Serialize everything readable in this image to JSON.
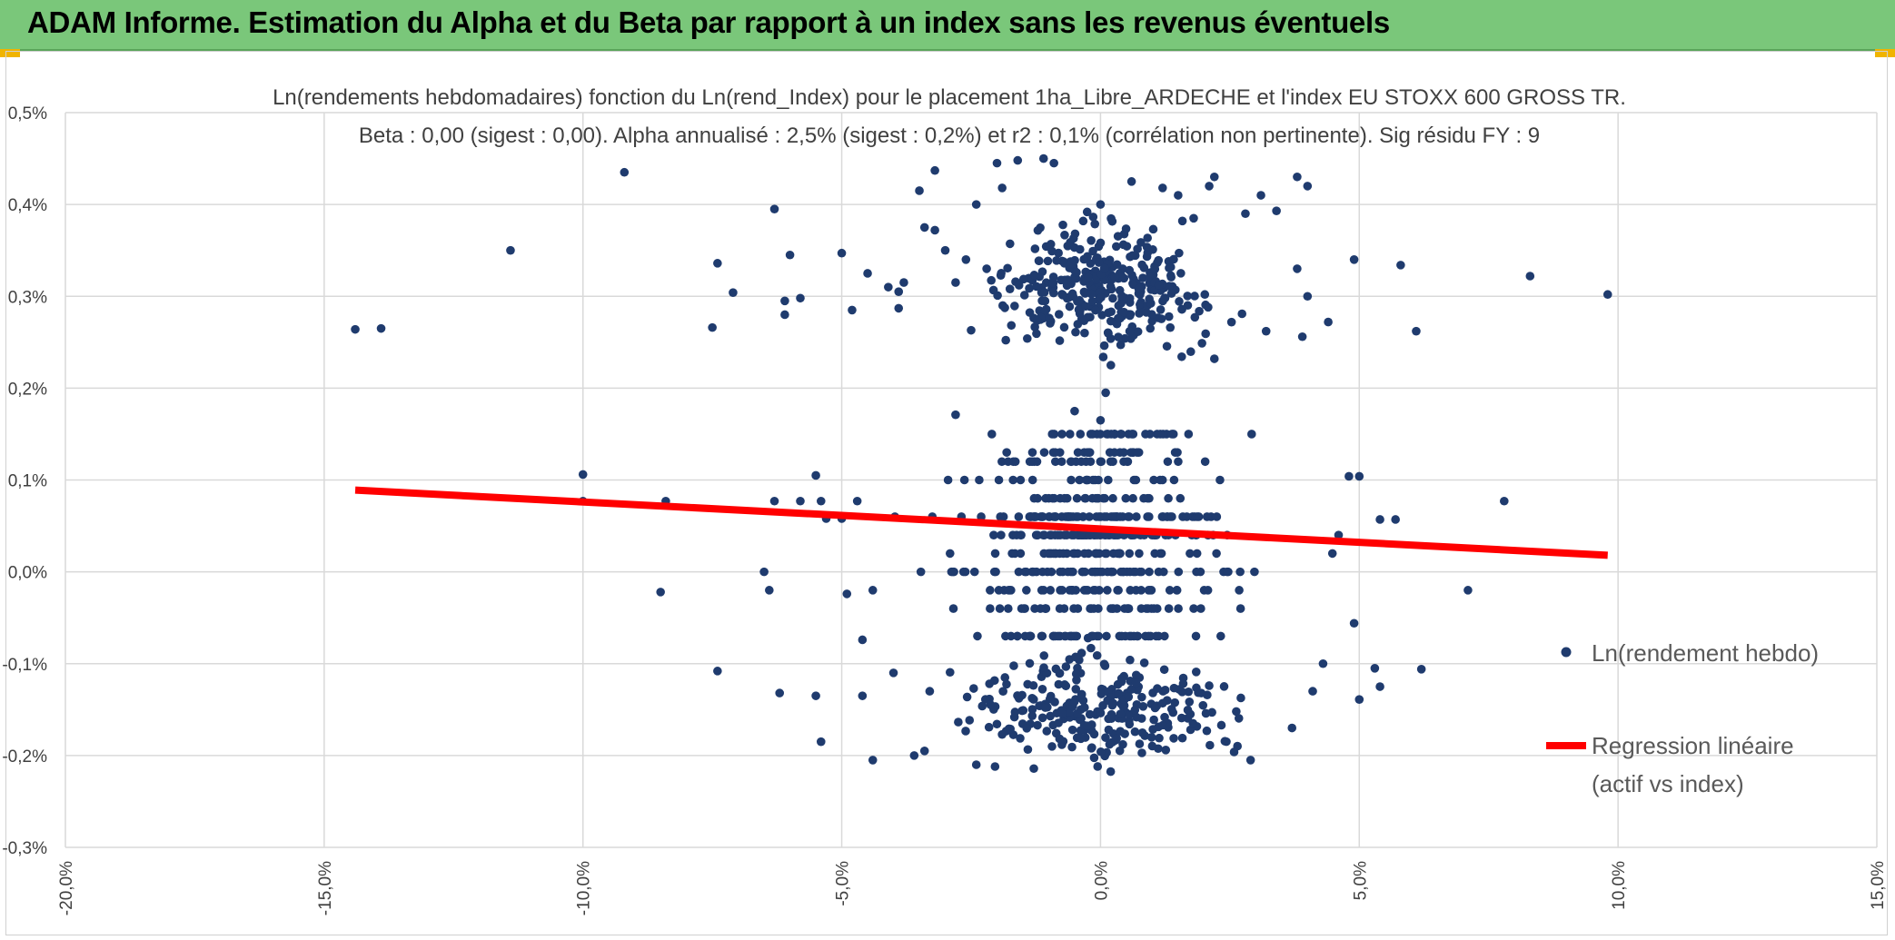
{
  "page": {
    "banner_title": "ADAM Informe. Estimation du Alpha et du Beta par rapport à un index sans les revenus éventuels"
  },
  "colors": {
    "banner": "#7ac77a",
    "points": "#1f3b6e",
    "regression": "#ff0000",
    "grid": "#d9d9d9",
    "corner_accent": "#f0b400"
  },
  "chart_data": {
    "type": "scatter",
    "title_line1": "Ln(rendements hebdomadaires) fonction du Ln(rend_Index) pour le placement 1ha_Libre_ARDECHE et l'index EU STOXX 600 GROSS TR.",
    "title_line2": "Beta : 0,00 (sigest : 0,00). Alpha annualisé : 2,5% (sigest : 0,2%) et r2 : 0,1% (corrélation non pertinente). Sig résidu FY : 9",
    "xlabel": "",
    "ylabel": "",
    "xlim": [
      -0.2,
      0.15
    ],
    "ylim": [
      -0.003,
      0.005
    ],
    "x_ticks": [
      {
        "v": -0.2,
        "label": "-20,0%"
      },
      {
        "v": -0.15,
        "label": "-15,0%"
      },
      {
        "v": -0.1,
        "label": "-10,0%"
      },
      {
        "v": -0.05,
        "label": "-5,0%"
      },
      {
        "v": 0.0,
        "label": "0,0%"
      },
      {
        "v": 0.05,
        "label": "5,0%"
      },
      {
        "v": 0.1,
        "label": "10,0%"
      },
      {
        "v": 0.15,
        "label": "15,0%"
      }
    ],
    "y_ticks": [
      {
        "v": 0.005,
        "label": "0,5%"
      },
      {
        "v": 0.004,
        "label": "0,4%"
      },
      {
        "v": 0.003,
        "label": "0,3%"
      },
      {
        "v": 0.002,
        "label": "0,2%"
      },
      {
        "v": 0.001,
        "label": "0,1%"
      },
      {
        "v": 0.0,
        "label": "0,0%"
      },
      {
        "v": -0.001,
        "label": "-0,1%"
      },
      {
        "v": -0.002,
        "label": "-0,2%"
      },
      {
        "v": -0.003,
        "label": "-0,3%"
      }
    ],
    "grid": true,
    "legend_position": "right",
    "legend": [
      {
        "name": "Ln(rendement hebdo)",
        "kind": "marker"
      },
      {
        "name": "Regression linéaire\n(actif vs index)",
        "line1": "Regression linéaire",
        "line2": "(actif vs index)",
        "kind": "line"
      }
    ],
    "regression": {
      "x": [
        -0.144,
        0.098
      ],
      "y": [
        0.00089,
        0.00018
      ]
    },
    "series": [
      {
        "name": "Ln(rendement hebdo)",
        "points": [
          [
            -0.144,
            0.00264
          ],
          [
            -0.139,
            0.00265
          ],
          [
            -0.114,
            0.0035
          ],
          [
            -0.092,
            0.00435
          ],
          [
            -0.063,
            0.00395
          ],
          [
            -0.075,
            0.00266
          ],
          [
            -0.074,
            0.00336
          ],
          [
            -0.071,
            0.00304
          ],
          [
            -0.06,
            0.00345
          ],
          [
            -0.061,
            0.0028
          ],
          [
            -0.061,
            0.00295
          ],
          [
            -0.058,
            0.00298
          ],
          [
            -0.05,
            0.00347
          ],
          [
            -0.048,
            0.00285
          ],
          [
            -0.045,
            0.00325
          ],
          [
            -0.041,
            0.0031
          ],
          [
            -0.039,
            0.00287
          ],
          [
            -0.039,
            0.00305
          ],
          [
            -0.038,
            0.00315
          ],
          [
            -0.035,
            0.00415
          ],
          [
            -0.034,
            0.00375
          ],
          [
            -0.032,
            0.00372
          ],
          [
            -0.032,
            0.00437
          ],
          [
            -0.03,
            0.0035
          ],
          [
            -0.028,
            0.00315
          ],
          [
            -0.026,
            0.0034
          ],
          [
            -0.025,
            0.00263
          ],
          [
            -0.024,
            0.004
          ],
          [
            -0.022,
            0.0033
          ],
          [
            -0.02,
            0.00445
          ],
          [
            -0.019,
            0.00418
          ],
          [
            -0.016,
            0.00448
          ],
          [
            -0.011,
            0.0045
          ],
          [
            -0.009,
            0.00445
          ],
          [
            0.0,
            0.004
          ],
          [
            0.002,
            0.00225
          ],
          [
            0.006,
            0.00425
          ],
          [
            0.012,
            0.00418
          ],
          [
            0.015,
            0.0041
          ],
          [
            0.018,
            0.00385
          ],
          [
            0.021,
            0.0042
          ],
          [
            0.022,
            0.0043
          ],
          [
            0.022,
            0.00232
          ],
          [
            0.028,
            0.0039
          ],
          [
            0.031,
            0.0041
          ],
          [
            0.032,
            0.00262
          ],
          [
            0.034,
            0.00393
          ],
          [
            0.038,
            0.0043
          ],
          [
            0.04,
            0.0042
          ],
          [
            0.038,
            0.0033
          ],
          [
            0.039,
            0.00256
          ],
          [
            0.04,
            0.003
          ],
          [
            0.044,
            0.00272
          ],
          [
            0.049,
            0.0034
          ],
          [
            0.058,
            0.00334
          ],
          [
            0.061,
            0.00262
          ],
          [
            0.083,
            0.00322
          ],
          [
            0.098,
            0.00302
          ],
          [
            -0.1,
            0.00106
          ],
          [
            -0.1,
            0.00077
          ],
          [
            -0.084,
            0.00077
          ],
          [
            -0.085,
            -0.00022
          ],
          [
            -0.065,
            0.0
          ],
          [
            -0.064,
            -0.0002
          ],
          [
            -0.063,
            0.00077
          ],
          [
            -0.058,
            0.00077
          ],
          [
            -0.055,
            0.00105
          ],
          [
            -0.054,
            0.00077
          ],
          [
            -0.053,
            0.00058
          ],
          [
            -0.05,
            0.00058
          ],
          [
            -0.049,
            -0.00024
          ],
          [
            -0.047,
            0.00077
          ],
          [
            -0.046,
            -0.00074
          ],
          [
            -0.044,
            -0.0002
          ],
          [
            -0.062,
            -0.00132
          ],
          [
            -0.055,
            -0.00135
          ],
          [
            -0.054,
            -0.00185
          ],
          [
            -0.046,
            -0.00135
          ],
          [
            -0.044,
            -0.00205
          ],
          [
            -0.074,
            -0.00108
          ],
          [
            -0.04,
            -0.0011
          ],
          [
            -0.036,
            -0.002
          ],
          [
            -0.034,
            -0.00195
          ],
          [
            -0.033,
            -0.0013
          ],
          [
            0.048,
            0.00104
          ],
          [
            0.05,
            0.00104
          ],
          [
            0.046,
            0.0004
          ],
          [
            0.049,
            -0.00056
          ],
          [
            0.05,
            -0.00139
          ],
          [
            0.053,
            -0.00105
          ],
          [
            0.054,
            -0.00125
          ],
          [
            0.054,
            0.00057
          ],
          [
            0.057,
            0.00057
          ],
          [
            0.062,
            -0.00106
          ],
          [
            0.071,
            -0.0002
          ],
          [
            0.078,
            0.00077
          ],
          [
            -0.028,
            0.00171
          ],
          [
            -0.021,
            0.0015
          ],
          [
            -0.005,
            0.00175
          ],
          [
            0.001,
            0.00195
          ],
          [
            0.0,
            0.00165
          ],
          [
            0.037,
            -0.0017
          ],
          [
            0.043,
            -0.001
          ],
          [
            0.041,
            -0.0013
          ],
          [
            -0.024,
            -0.0021
          ],
          [
            0.029,
            -0.00205
          ]
        ],
        "clusters": [
          {
            "cx": 0.0,
            "cy": 0.0031,
            "sx": 0.014,
            "sy": 0.00042,
            "n": 330
          },
          {
            "cx": 0.0,
            "cy": 0.001,
            "sx": 0.016,
            "sy": 0.0003,
            "n": 190
          },
          {
            "cx": 0.0,
            "cy": 0.0,
            "sx": 0.018,
            "sy": 0.0004,
            "n": 300
          },
          {
            "cx": 0.0,
            "cy": -0.0015,
            "sx": 0.017,
            "sy": 0.0004,
            "n": 270
          }
        ],
        "y_levels": [
          0.0015,
          0.0013,
          0.0012,
          0.001,
          0.0008,
          0.0006,
          0.0004,
          0.0002,
          0.0,
          -0.0002,
          -0.0004,
          -0.0007,
          -0.001,
          -0.0012,
          -0.0014,
          -0.0018,
          -0.0019,
          -0.002
        ]
      }
    ]
  }
}
